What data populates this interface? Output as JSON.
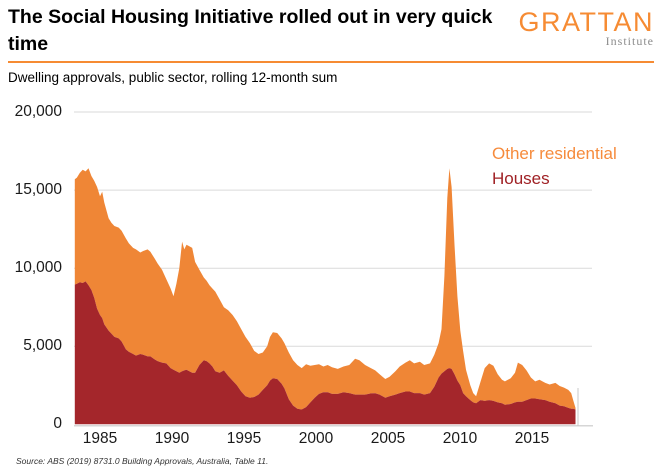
{
  "header": {
    "title": "The Social Housing Initiative rolled out in very quick time",
    "logo_text": "GRATTAN",
    "logo_subtext": "Institute"
  },
  "subtitle": "Dwelling approvals, public sector, rolling 12-month sum",
  "source": "Source: ABS (2019) 8731.0 Building Approvals, Australia, Table 11.",
  "colors": {
    "area_orange": "#EF8636",
    "area_dark_red": "#A4262B",
    "legend_orange": "#F68B3C",
    "legend_red": "#A02226",
    "logo_orange": "#F68B33",
    "institute_gray": "#8C8C8C",
    "rule_orange": "#F68B33",
    "grid": "#DADADA",
    "axis": "#C8C8C8"
  },
  "chart_data": {
    "type": "area",
    "stacked": true,
    "title": "Dwelling approvals, public sector, rolling 12-month sum",
    "grid": true,
    "legend_position": "top-right-inside",
    "xlim": [
      1983.25,
      2018.0
    ],
    "ylim": [
      0,
      20000
    ],
    "x_ticks": [
      1985,
      1990,
      1995,
      2000,
      2005,
      2010,
      2015
    ],
    "y_ticks": [
      "20,000",
      "15,000",
      "10,000",
      "5,000",
      "0"
    ],
    "y_tick_values": [
      20000,
      15000,
      10000,
      5000,
      0
    ],
    "legend": [
      {
        "label": "Other residential",
        "color": "#F68B3C"
      },
      {
        "label": "Houses",
        "color": "#A02226"
      }
    ],
    "x": [
      1983.25,
      1983.4,
      1983.6,
      1983.8,
      1984.0,
      1984.2,
      1984.4,
      1984.6,
      1984.8,
      1985.0,
      1985.15,
      1985.3,
      1985.6,
      1985.8,
      1986.0,
      1986.3,
      1986.5,
      1986.8,
      1987.0,
      1987.3,
      1987.5,
      1987.8,
      1988.0,
      1988.3,
      1988.5,
      1988.8,
      1989.0,
      1989.3,
      1989.6,
      1989.9,
      1990.1,
      1990.3,
      1990.5,
      1990.7,
      1990.85,
      1991.0,
      1991.2,
      1991.4,
      1991.6,
      1991.9,
      1992.2,
      1992.4,
      1992.6,
      1992.8,
      1993.0,
      1993.3,
      1993.6,
      1993.9,
      1994.2,
      1994.5,
      1994.8,
      1995.1,
      1995.4,
      1995.7,
      1996.0,
      1996.3,
      1996.6,
      1996.8,
      1997.0,
      1997.3,
      1997.6,
      1997.8,
      1998.1,
      1998.4,
      1998.7,
      1999.0,
      1999.3,
      1999.6,
      1999.9,
      2000.2,
      2000.5,
      2000.8,
      2001.1,
      2001.5,
      2001.9,
      2002.3,
      2002.7,
      2003.0,
      2003.4,
      2003.8,
      2004.1,
      2004.4,
      2004.8,
      2005.1,
      2005.5,
      2005.8,
      2006.2,
      2006.5,
      2006.8,
      2007.2,
      2007.5,
      2007.9,
      2008.2,
      2008.5,
      2008.7,
      2008.9,
      2009.1,
      2009.25,
      2009.4,
      2009.6,
      2009.8,
      2010.0,
      2010.2,
      2010.4,
      2010.7,
      2010.9,
      2011.1,
      2011.4,
      2011.7,
      2012.0,
      2012.3,
      2012.6,
      2012.9,
      2013.1,
      2013.5,
      2013.8,
      2014.0,
      2014.3,
      2014.6,
      2014.9,
      2015.2,
      2015.5,
      2015.9,
      2016.2,
      2016.6,
      2016.9,
      2017.2,
      2017.5,
      2017.7,
      2017.85,
      2018.0
    ],
    "series": [
      {
        "name": "Houses",
        "values": [
          8950,
          9000,
          9100,
          9050,
          9150,
          8900,
          8600,
          8100,
          7400,
          7000,
          6800,
          6400,
          6000,
          5800,
          5600,
          5500,
          5300,
          4800,
          4650,
          4500,
          4400,
          4500,
          4450,
          4350,
          4350,
          4150,
          4050,
          3950,
          3900,
          3600,
          3500,
          3400,
          3300,
          3400,
          3450,
          3500,
          3400,
          3300,
          3300,
          3800,
          4100,
          4050,
          3900,
          3700,
          3400,
          3300,
          3450,
          3100,
          2800,
          2500,
          2100,
          1800,
          1700,
          1750,
          1900,
          2200,
          2500,
          2800,
          2950,
          2900,
          2600,
          2300,
          1600,
          1200,
          1000,
          950,
          1100,
          1400,
          1700,
          1950,
          2050,
          2050,
          1950,
          1950,
          2050,
          2000,
          1900,
          1900,
          1900,
          1980,
          1990,
          1900,
          1700,
          1800,
          1900,
          2000,
          2100,
          2100,
          2000,
          2000,
          1900,
          2000,
          2400,
          3000,
          3250,
          3400,
          3550,
          3600,
          3550,
          3200,
          2800,
          2500,
          2000,
          1800,
          1550,
          1400,
          1350,
          1550,
          1500,
          1550,
          1500,
          1400,
          1350,
          1250,
          1300,
          1400,
          1450,
          1450,
          1550,
          1650,
          1650,
          1600,
          1550,
          1450,
          1350,
          1200,
          1150,
          1050,
          1000,
          1000,
          950
        ]
      },
      {
        "name": "Other residential",
        "values": [
          6750,
          6800,
          7000,
          7250,
          7050,
          7500,
          7300,
          7500,
          7800,
          7600,
          8100,
          7800,
          7200,
          7100,
          7100,
          7100,
          7100,
          7100,
          6950,
          6800,
          6800,
          6500,
          6650,
          6850,
          6700,
          6450,
          6250,
          5950,
          5400,
          5100,
          4700,
          5600,
          6700,
          8300,
          7750,
          8000,
          8000,
          8000,
          7100,
          6100,
          5300,
          5150,
          5000,
          5000,
          5100,
          4700,
          4050,
          4200,
          4200,
          4100,
          4000,
          3800,
          3500,
          2950,
          2600,
          2400,
          2500,
          2800,
          2950,
          2950,
          2900,
          2900,
          3000,
          2900,
          2800,
          2650,
          2750,
          2350,
          2100,
          1900,
          1650,
          1750,
          1700,
          1600,
          1650,
          1800,
          2300,
          2200,
          1900,
          1620,
          1460,
          1300,
          1200,
          1250,
          1500,
          1700,
          1850,
          2000,
          1900,
          2000,
          1900,
          1900,
          2050,
          2200,
          2850,
          6100,
          10950,
          12800,
          11650,
          8300,
          5400,
          3500,
          2700,
          1700,
          950,
          600,
          450,
          1150,
          2100,
          2350,
          2250,
          1800,
          1500,
          1500,
          1650,
          1900,
          2500,
          2350,
          1900,
          1350,
          1100,
          1250,
          1100,
          1100,
          1300,
          1250,
          1200,
          1150,
          1000,
          500,
          100
        ]
      }
    ]
  }
}
